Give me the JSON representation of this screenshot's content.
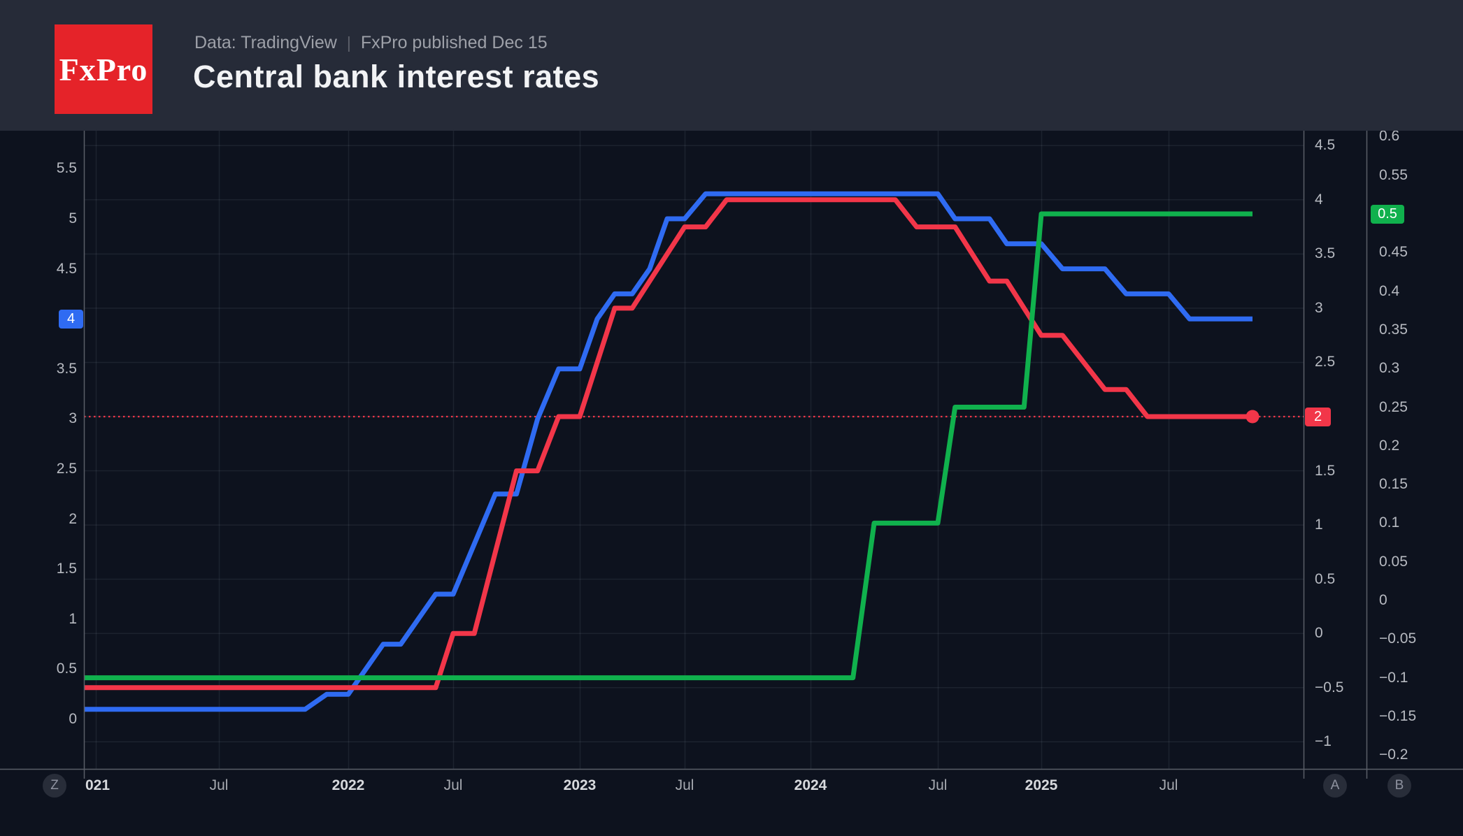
{
  "header": {
    "logo_text": "FxPro",
    "subtitle_prefix": "Data: TradingView",
    "subtitle_separator": "|",
    "subtitle_suffix": "FxPro published Dec 15",
    "title": "Central bank interest rates"
  },
  "colors": {
    "header_bg": "#262b38",
    "plot_bg": "#0d121e",
    "logo_red": "#e52329",
    "blue_line": "#2f6bf2",
    "red_line": "#f23649",
    "green_line": "#10b14d",
    "grid": "rgba(170,180,200,0.10)",
    "axis_line": "#5a5e68"
  },
  "axes": {
    "left": {
      "button": "Z",
      "ticks": [
        "5.5",
        "5",
        "4.5",
        "3.5",
        "3",
        "2.5",
        "2",
        "1.5",
        "1",
        "0.5",
        "0"
      ],
      "badge": {
        "text": "4",
        "value": 4,
        "color": "#2f6bf2"
      }
    },
    "right_a": {
      "button": "A",
      "ticks": [
        "4.5",
        "4",
        "3.5",
        "3",
        "2.5",
        "1.5",
        "1",
        "0.5",
        "0",
        "−0.5",
        "−1"
      ],
      "badge": {
        "text": "2",
        "value": 2,
        "color": "#f23649"
      }
    },
    "right_b": {
      "button": "B",
      "ticks": [
        "0.6",
        "0.55",
        "0.45",
        "0.4",
        "0.35",
        "0.3",
        "0.25",
        "0.2",
        "0.15",
        "0.1",
        "0.05",
        "0",
        "−0.05",
        "−0.1",
        "−0.15",
        "−0.2"
      ],
      "badge": {
        "text": "0.5",
        "value": 0.5,
        "color": "#10b14d"
      }
    },
    "x": {
      "labels": [
        {
          "text": "021",
          "bold": true
        },
        {
          "text": "Jul",
          "bold": false
        },
        {
          "text": "2022",
          "bold": true
        },
        {
          "text": "Jul",
          "bold": false
        },
        {
          "text": "2023",
          "bold": true
        },
        {
          "text": "Jul",
          "bold": false
        },
        {
          "text": "2024",
          "bold": true
        },
        {
          "text": "Jul",
          "bold": false
        },
        {
          "text": "2025",
          "bold": true
        },
        {
          "text": "Jul",
          "bold": false
        }
      ]
    }
  },
  "chart_data": {
    "type": "line",
    "title": "Central bank interest rates",
    "x_start": "2020-12",
    "x_end": "2025-11",
    "x_interval": "monthly",
    "grid": "on",
    "legend": "none",
    "axes_ranges": {
      "left": [
        0,
        5.5
      ],
      "right_a": [
        -1,
        4.5
      ],
      "right_b": [
        -0.2,
        0.6
      ]
    },
    "series": [
      {
        "name": "blue_line",
        "scale": "left",
        "color": "#2f6bf2",
        "last_value": 4,
        "values": [
          0.1,
          0.1,
          0.1,
          0.1,
          0.1,
          0.1,
          0.1,
          0.1,
          0.1,
          0.1,
          0.1,
          0.1,
          0.25,
          0.25,
          0.5,
          0.75,
          0.75,
          1.0,
          1.25,
          1.25,
          1.75,
          2.25,
          2.25,
          3.0,
          3.5,
          3.5,
          4.0,
          4.25,
          4.25,
          4.5,
          5.0,
          5.0,
          5.25,
          5.25,
          5.25,
          5.25,
          5.25,
          5.25,
          5.25,
          5.25,
          5.25,
          5.25,
          5.25,
          5.25,
          5.0,
          5.0,
          5.0,
          4.75,
          4.75,
          4.75,
          4.5,
          4.5,
          4.5,
          4.25,
          4.25,
          4.25,
          4.0,
          4.0,
          4.0,
          4.0
        ]
      },
      {
        "name": "red_line",
        "scale": "right_a",
        "color": "#f23649",
        "last_value": 2,
        "end_dot": true,
        "values": [
          -0.5,
          -0.5,
          -0.5,
          -0.5,
          -0.5,
          -0.5,
          -0.5,
          -0.5,
          -0.5,
          -0.5,
          -0.5,
          -0.5,
          -0.5,
          -0.5,
          -0.5,
          -0.5,
          -0.5,
          -0.5,
          -0.5,
          0.0,
          0.0,
          0.75,
          1.5,
          1.5,
          2.0,
          2.0,
          2.5,
          3.0,
          3.0,
          3.25,
          3.5,
          3.75,
          3.75,
          4.0,
          4.0,
          4.0,
          4.0,
          4.0,
          4.0,
          4.0,
          4.0,
          4.0,
          3.75,
          3.75,
          3.75,
          3.5,
          3.25,
          3.25,
          3.0,
          2.75,
          2.75,
          2.5,
          2.25,
          2.25,
          2.0,
          2.0,
          2.0,
          2.0,
          2.0,
          2.0
        ]
      },
      {
        "name": "green_line",
        "scale": "right_b",
        "color": "#10b14d",
        "last_value": 0.5,
        "values": [
          -0.1,
          -0.1,
          -0.1,
          -0.1,
          -0.1,
          -0.1,
          -0.1,
          -0.1,
          -0.1,
          -0.1,
          -0.1,
          -0.1,
          -0.1,
          -0.1,
          -0.1,
          -0.1,
          -0.1,
          -0.1,
          -0.1,
          -0.1,
          -0.1,
          -0.1,
          -0.1,
          -0.1,
          -0.1,
          -0.1,
          -0.1,
          -0.1,
          -0.1,
          -0.1,
          -0.1,
          -0.1,
          -0.1,
          -0.1,
          -0.1,
          -0.1,
          -0.1,
          -0.1,
          -0.1,
          -0.1,
          0.1,
          0.1,
          0.1,
          0.1,
          0.25,
          0.25,
          0.25,
          0.25,
          0.25,
          0.5,
          0.5,
          0.5,
          0.5,
          0.5,
          0.5,
          0.5,
          0.5,
          0.5,
          0.5,
          0.5
        ]
      }
    ],
    "price_line": {
      "series": "red_line",
      "scale": "right_a",
      "value": 2,
      "color": "#f23649",
      "style": "dotted"
    }
  }
}
